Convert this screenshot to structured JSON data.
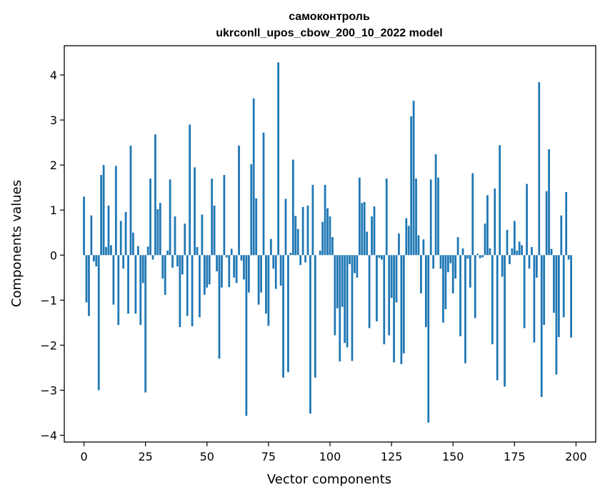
{
  "chart_data": {
    "type": "bar",
    "title": "самоконтроль",
    "subtitle": "ukrconll_upos_cbow_200_10_2022 model",
    "xlabel": "Vector components",
    "ylabel": "Components values",
    "xlim": [
      -8,
      208
    ],
    "ylim": [
      -4.15,
      4.65
    ],
    "xticks": [
      0,
      25,
      50,
      75,
      100,
      125,
      150,
      175,
      200
    ],
    "yticks": [
      -4,
      -3,
      -2,
      -1,
      0,
      1,
      2,
      3,
      4
    ],
    "ytick_labels": [
      "−4",
      "−3",
      "−2",
      "−1",
      "0",
      "1",
      "2",
      "3",
      "4"
    ],
    "bar_color": "#1f77b4",
    "grid": false,
    "values": [
      1.3,
      -1.05,
      -1.35,
      0.88,
      -0.14,
      -0.25,
      -3.0,
      1.78,
      2.0,
      0.18,
      1.1,
      0.22,
      -1.1,
      1.98,
      -1.55,
      0.76,
      -0.3,
      0.96,
      -1.3,
      2.43,
      0.5,
      -1.3,
      0.2,
      -1.55,
      -0.62,
      -3.05,
      0.19,
      1.7,
      -0.1,
      2.68,
      1.02,
      1.16,
      -0.52,
      -0.88,
      0.1,
      1.68,
      -0.28,
      0.86,
      -0.25,
      -1.6,
      -0.43,
      0.7,
      -1.35,
      2.9,
      -1.58,
      1.95,
      0.18,
      -1.38,
      0.9,
      -0.88,
      -0.72,
      -0.65,
      1.7,
      1.1,
      -0.36,
      -2.3,
      -0.72,
      1.78,
      -0.05,
      -0.71,
      0.14,
      -0.5,
      -0.62,
      2.43,
      -0.12,
      -0.54,
      -3.57,
      -0.83,
      2.02,
      3.48,
      1.26,
      -1.1,
      -0.83,
      2.72,
      -1.3,
      -1.57,
      0.36,
      -0.3,
      -0.75,
      4.28,
      -0.68,
      -2.72,
      1.25,
      -2.6,
      0.05,
      2.12,
      0.87,
      0.58,
      -0.22,
      1.07,
      -0.16,
      1.1,
      -3.52,
      1.56,
      -2.72,
      0.0,
      0.1,
      0.74,
      1.56,
      1.04,
      0.86,
      0.4,
      -1.78,
      -1.18,
      -2.36,
      -1.15,
      -1.95,
      -2.05,
      -0.2,
      -2.35,
      -0.4,
      -0.5,
      1.72,
      1.16,
      1.18,
      0.52,
      -1.62,
      0.86,
      1.08,
      -1.47,
      -0.06,
      -0.1,
      -1.98,
      1.7,
      -1.78,
      -0.95,
      -2.38,
      -1.05,
      0.48,
      -2.42,
      -2.18,
      0.82,
      0.65,
      3.08,
      3.43,
      1.7,
      0.44,
      -0.85,
      0.35,
      -1.6,
      -3.72,
      1.68,
      -0.3,
      2.24,
      1.72,
      -0.3,
      -1.5,
      -1.2,
      -0.38,
      -0.18,
      -0.85,
      -0.52,
      0.4,
      -1.8,
      0.15,
      -2.4,
      -0.08,
      -0.72,
      1.82,
      -1.4,
      0.03,
      -0.07,
      -0.05,
      0.7,
      1.33,
      0.15,
      -1.98,
      1.48,
      -2.78,
      2.44,
      -0.48,
      -2.92,
      0.56,
      -0.2,
      0.15,
      0.76,
      0.1,
      0.3,
      0.22,
      -1.62,
      1.58,
      -0.3,
      0.18,
      -1.94,
      -0.5,
      3.84,
      -3.15,
      -1.55,
      1.42,
      2.35,
      0.14,
      -1.28,
      -2.65,
      -1.82,
      0.88,
      -1.38,
      1.4,
      -0.1,
      -1.83
    ]
  }
}
